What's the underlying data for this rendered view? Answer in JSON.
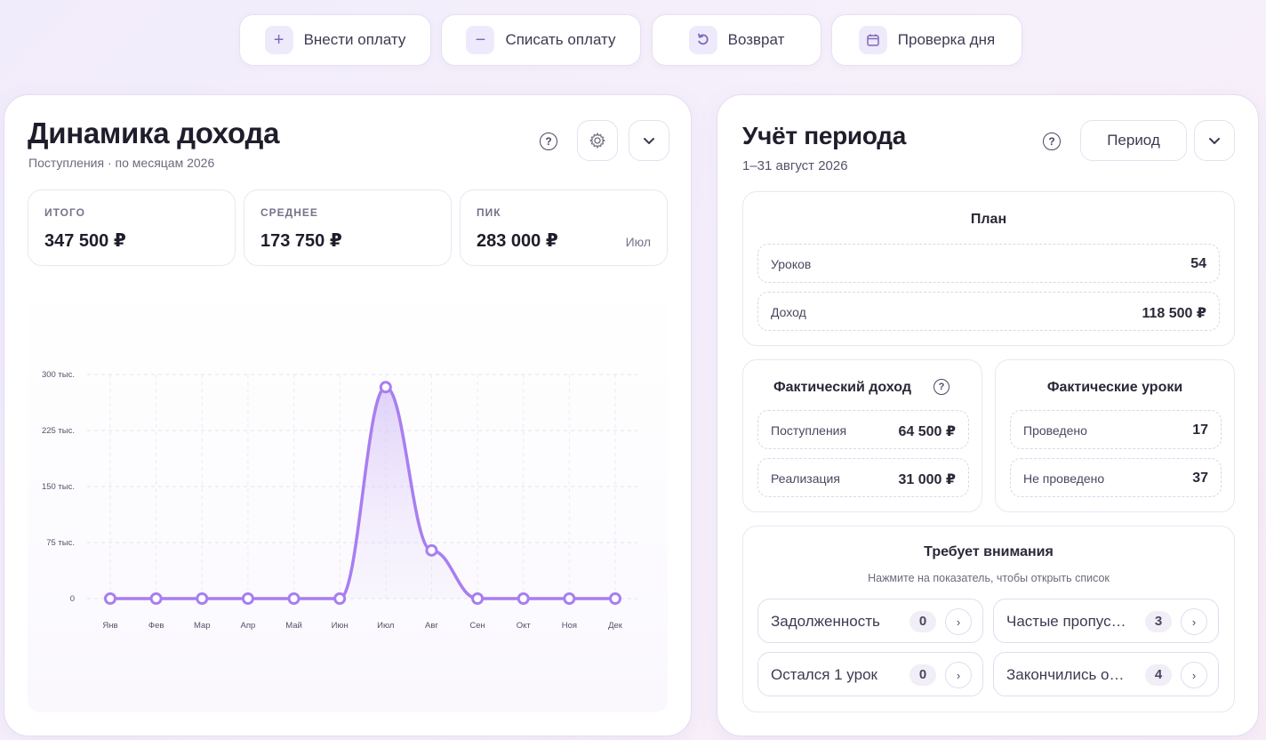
{
  "actions": [
    {
      "label": "Внести оплату",
      "icon": "plus-icon"
    },
    {
      "label": "Списать оплату",
      "icon": "minus-icon"
    },
    {
      "label": "Возврат",
      "icon": "undo-icon"
    },
    {
      "label": "Проверка дня",
      "icon": "calendar-icon"
    }
  ],
  "income": {
    "title": "Динамика дохода",
    "subtitle": "Поступления · по месяцам 2026",
    "stats": {
      "total": {
        "label": "ИТОГО",
        "value": "347 500 ₽"
      },
      "average": {
        "label": "СРЕДНЕЕ",
        "value": "173 750 ₽"
      },
      "peak": {
        "label": "ПИК",
        "value": "283 000 ₽",
        "note": "Июл"
      }
    }
  },
  "chart_data": {
    "type": "line",
    "categories": [
      "Янв",
      "Фев",
      "Мар",
      "Апр",
      "Май",
      "Июн",
      "Июл",
      "Авг",
      "Сен",
      "Окт",
      "Ноя",
      "Дек"
    ],
    "values": [
      0,
      0,
      0,
      0,
      0,
      0,
      283000,
      64500,
      0,
      0,
      0,
      0
    ],
    "yticks": [
      0,
      75000,
      150000,
      225000,
      300000
    ],
    "ytick_labels": [
      "0",
      "75 тыс.",
      "150 тыс.",
      "225 тыс.",
      "300 тыс."
    ],
    "ylim": [
      0,
      300000
    ],
    "grid": true,
    "color": "#a87ef0"
  },
  "period": {
    "title": "Учёт периода",
    "subtitle": "1–31 август 2026",
    "period_button": "Период",
    "plan": {
      "title": "План",
      "lessons_label": "Уроков",
      "lessons_value": "54",
      "income_label": "Доход",
      "income_value": "118 500 ₽"
    },
    "actual_income": {
      "title": "Фактический доход",
      "receipts_label": "Поступления",
      "receipts_value": "64 500 ₽",
      "realization_label": "Реализация",
      "realization_value": "31 000 ₽"
    },
    "actual_lessons": {
      "title": "Фактические уроки",
      "done_label": "Проведено",
      "done_value": "17",
      "notdone_label": "Не проведено",
      "notdone_value": "37"
    },
    "attention": {
      "title": "Требует внимания",
      "hint": "Нажмите на показатель, чтобы открыть список",
      "items": [
        {
          "label": "Задолженность",
          "count": "0"
        },
        {
          "label": "Частые пропус…",
          "count": "3"
        },
        {
          "label": "Остался 1 урок",
          "count": "0"
        },
        {
          "label": "Закончились о…",
          "count": "4"
        }
      ]
    }
  }
}
